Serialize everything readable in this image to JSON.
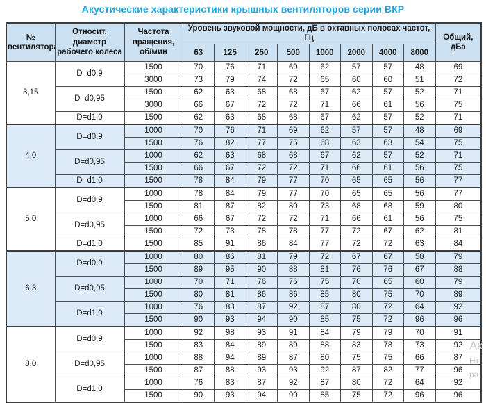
{
  "title": "Акустические характеристики крышных вентиляторов серии ВКР",
  "colors": {
    "title": "#1ba7e0",
    "header_bg": "#cce1f1",
    "shaded_row_bg": "#dcebf7",
    "border": "#4d4d4d",
    "border_dark": "#3c3c3c",
    "watermark": "#c4c7c9"
  },
  "watermark": {
    "line1": "Ак",
    "line2": "Нт",
    "line3": "ра"
  },
  "table": {
    "headers": {
      "fan_no": "№ вентилятора",
      "diameter": "Относит. диаметр рабочего колеса",
      "speed": "Частота вращения, об/мин",
      "spl_group": "Уровень звуковой мощности, дБ в октавных полосах частот, Гц",
      "freq_cols": [
        "63",
        "125",
        "250",
        "500",
        "1000",
        "2000",
        "4000",
        "8000"
      ],
      "total": "Общий, дБа"
    },
    "groups": [
      {
        "fan": "3,15",
        "shaded": false,
        "subgroups": [
          {
            "diameter": "D=d0,9",
            "rows": [
              {
                "speed": "1500",
                "values": [
                  "70",
                  "76",
                  "71",
                  "69",
                  "62",
                  "57",
                  "57",
                  "48"
                ],
                "total": "69"
              },
              {
                "speed": "3000",
                "values": [
                  "73",
                  "79",
                  "74",
                  "72",
                  "65",
                  "60",
                  "60",
                  "51"
                ],
                "total": "72"
              }
            ]
          },
          {
            "diameter": "D=d0,95",
            "rows": [
              {
                "speed": "1500",
                "values": [
                  "62",
                  "63",
                  "68",
                  "68",
                  "67",
                  "62",
                  "57",
                  "52"
                ],
                "total": "71"
              },
              {
                "speed": "3000",
                "values": [
                  "66",
                  "67",
                  "72",
                  "72",
                  "71",
                  "66",
                  "61",
                  "56"
                ],
                "total": "75"
              }
            ]
          },
          {
            "diameter": "D=d1,0",
            "rows": [
              {
                "speed": "1500",
                "values": [
                  "62",
                  "63",
                  "68",
                  "68",
                  "67",
                  "62",
                  "57",
                  "52"
                ],
                "total": "71"
              }
            ]
          }
        ]
      },
      {
        "fan": "4,0",
        "shaded": true,
        "subgroups": [
          {
            "diameter": "D=d0,9",
            "rows": [
              {
                "speed": "1000",
                "values": [
                  "70",
                  "76",
                  "71",
                  "69",
                  "62",
                  "57",
                  "57",
                  "48"
                ],
                "total": "69"
              },
              {
                "speed": "1500",
                "values": [
                  "76",
                  "82",
                  "77",
                  "75",
                  "68",
                  "63",
                  "63",
                  "54"
                ],
                "total": "75"
              }
            ]
          },
          {
            "diameter": "D=d0,95",
            "rows": [
              {
                "speed": "1000",
                "values": [
                  "62",
                  "63",
                  "68",
                  "68",
                  "67",
                  "62",
                  "57",
                  "52"
                ],
                "total": "71"
              },
              {
                "speed": "1500",
                "values": [
                  "66",
                  "67",
                  "72",
                  "72",
                  "71",
                  "66",
                  "61",
                  "56"
                ],
                "total": "75"
              }
            ]
          },
          {
            "diameter": "D=d1,0",
            "rows": [
              {
                "speed": "1500",
                "values": [
                  "78",
                  "84",
                  "79",
                  "77",
                  "70",
                  "65",
                  "65",
                  "56"
                ],
                "total": "77"
              }
            ]
          }
        ]
      },
      {
        "fan": "5,0",
        "shaded": false,
        "subgroups": [
          {
            "diameter": "D=d0,9",
            "rows": [
              {
                "speed": "1000",
                "values": [
                  "78",
                  "84",
                  "79",
                  "77",
                  "70",
                  "65",
                  "65",
                  "56"
                ],
                "total": "77"
              },
              {
                "speed": "1500",
                "values": [
                  "81",
                  "87",
                  "82",
                  "80",
                  "73",
                  "68",
                  "68",
                  "59"
                ],
                "total": "80"
              }
            ]
          },
          {
            "diameter": "D=d0,95",
            "rows": [
              {
                "speed": "1000",
                "values": [
                  "66",
                  "67",
                  "72",
                  "72",
                  "71",
                  "66",
                  "61",
                  "56"
                ],
                "total": "75"
              },
              {
                "speed": "1500",
                "values": [
                  "72",
                  "73",
                  "78",
                  "78",
                  "77",
                  "72",
                  "67",
                  "62"
                ],
                "total": "81"
              }
            ]
          },
          {
            "diameter": "D=d1,0",
            "rows": [
              {
                "speed": "1500",
                "values": [
                  "85",
                  "91",
                  "86",
                  "84",
                  "77",
                  "72",
                  "72",
                  "63"
                ],
                "total": "84"
              }
            ]
          }
        ]
      },
      {
        "fan": "6,3",
        "shaded": true,
        "subgroups": [
          {
            "diameter": "D=d0,9",
            "rows": [
              {
                "speed": "1000",
                "values": [
                  "80",
                  "86",
                  "81",
                  "79",
                  "72",
                  "67",
                  "67",
                  "58"
                ],
                "total": "79"
              },
              {
                "speed": "1500",
                "values": [
                  "89",
                  "95",
                  "90",
                  "88",
                  "81",
                  "76",
                  "76",
                  "67"
                ],
                "total": "88"
              }
            ]
          },
          {
            "diameter": "D=d0,95",
            "rows": [
              {
                "speed": "1000",
                "values": [
                  "70",
                  "71",
                  "76",
                  "76",
                  "75",
                  "70",
                  "65",
                  "60"
                ],
                "total": "79"
              },
              {
                "speed": "1500",
                "values": [
                  "80",
                  "81",
                  "86",
                  "86",
                  "85",
                  "80",
                  "75",
                  "70"
                ],
                "total": "89"
              }
            ]
          },
          {
            "diameter": "D=d1,0",
            "rows": [
              {
                "speed": "1000",
                "values": [
                  "76",
                  "83",
                  "87",
                  "92",
                  "87",
                  "80",
                  "72",
                  "64"
                ],
                "total": "92"
              },
              {
                "speed": "1500",
                "values": [
                  "90",
                  "93",
                  "94",
                  "90",
                  "85",
                  "75",
                  "72",
                  "96"
                ],
                "total": "96"
              }
            ]
          }
        ]
      },
      {
        "fan": "8,0",
        "shaded": false,
        "subgroups": [
          {
            "diameter": "D=d0,9",
            "rows": [
              {
                "speed": "1000",
                "values": [
                  "92",
                  "98",
                  "93",
                  "91",
                  "84",
                  "79",
                  "79",
                  "70"
                ],
                "total": "91"
              },
              {
                "speed": "1500",
                "values": [
                  "83",
                  "84",
                  "89",
                  "89",
                  "88",
                  "83",
                  "78",
                  "73"
                ],
                "total": "92"
              }
            ]
          },
          {
            "diameter": "D=d0,95",
            "rows": [
              {
                "speed": "1000",
                "values": [
                  "88",
                  "94",
                  "89",
                  "87",
                  "80",
                  "75",
                  "75",
                  "66"
                ],
                "total": "87"
              },
              {
                "speed": "1500",
                "values": [
                  "87",
                  "88",
                  "93",
                  "93",
                  "92",
                  "87",
                  "82",
                  "77"
                ],
                "total": "96"
              }
            ]
          },
          {
            "diameter": "D=d1,0",
            "rows": [
              {
                "speed": "1000",
                "values": [
                  "76",
                  "83",
                  "87",
                  "92",
                  "87",
                  "80",
                  "72",
                  "64"
                ],
                "total": "92"
              },
              {
                "speed": "1500",
                "values": [
                  "90",
                  "93",
                  "94",
                  "90",
                  "85",
                  "75",
                  "72",
                  "96"
                ],
                "total": "96"
              }
            ]
          }
        ]
      }
    ]
  }
}
